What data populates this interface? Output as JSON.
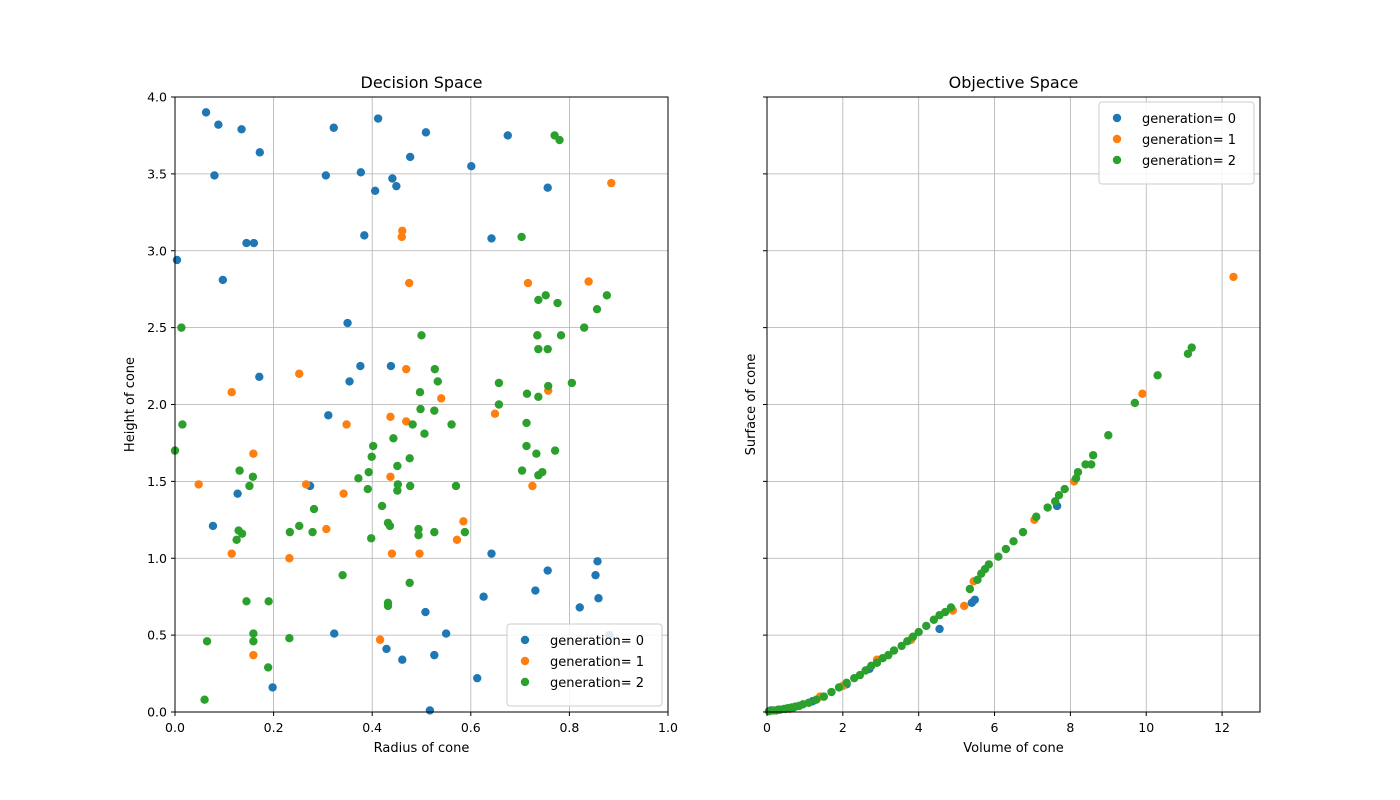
{
  "chart_data": [
    {
      "type": "scatter",
      "title": "Decision Space",
      "xlabel": "Radius of cone",
      "ylabel": "Height of cone",
      "xlim": [
        0,
        1
      ],
      "ylim": [
        0,
        4
      ],
      "xticks": [
        "0.0",
        "0.2",
        "0.4",
        "0.6",
        "0.8",
        "1.0"
      ],
      "xtick_values": [
        0,
        0.2,
        0.4,
        0.6,
        0.8,
        1.0
      ],
      "yticks": [
        "0.0",
        "0.5",
        "1.0",
        "1.5",
        "2.0",
        "2.5",
        "3.0",
        "3.5",
        "4.0"
      ],
      "ytick_values": [
        0,
        0.5,
        1.0,
        1.5,
        2.0,
        2.5,
        3.0,
        3.5,
        4.0
      ],
      "grid": true,
      "legend_position": "lower-right",
      "series": [
        {
          "name": "generation= 0",
          "color": "#1f77b4",
          "points": [
            [
              0.063,
              3.9
            ],
            [
              0.088,
              3.82
            ],
            [
              0.135,
              3.79
            ],
            [
              0.172,
              3.64
            ],
            [
              0.08,
              3.49
            ],
            [
              0.322,
              3.8
            ],
            [
              0.412,
              3.86
            ],
            [
              0.509,
              3.77
            ],
            [
              0.675,
              3.75
            ],
            [
              0.377,
              3.51
            ],
            [
              0.306,
              3.49
            ],
            [
              0.406,
              3.39
            ],
            [
              0.441,
              3.47
            ],
            [
              0.449,
              3.42
            ],
            [
              0.477,
              3.61
            ],
            [
              0.601,
              3.55
            ],
            [
              0.756,
              3.41
            ],
            [
              0.145,
              3.05
            ],
            [
              0.16,
              3.05
            ],
            [
              0.004,
              2.94
            ],
            [
              0.097,
              2.81
            ],
            [
              0.384,
              3.1
            ],
            [
              0.642,
              3.08
            ],
            [
              0.35,
              2.53
            ],
            [
              0.376,
              2.25
            ],
            [
              0.354,
              2.15
            ],
            [
              0.438,
              2.25
            ],
            [
              0.171,
              2.18
            ],
            [
              0.311,
              1.93
            ],
            [
              0.127,
              1.42
            ],
            [
              0.274,
              1.47
            ],
            [
              0.077,
              1.21
            ],
            [
              0.642,
              1.03
            ],
            [
              0.857,
              0.98
            ],
            [
              0.756,
              0.92
            ],
            [
              0.853,
              0.89
            ],
            [
              0.323,
              0.51
            ],
            [
              0.508,
              0.65
            ],
            [
              0.55,
              0.51
            ],
            [
              0.626,
              0.75
            ],
            [
              0.731,
              0.79
            ],
            [
              0.821,
              0.68
            ],
            [
              0.859,
              0.74
            ],
            [
              0.881,
              0.5
            ],
            [
              0.429,
              0.41
            ],
            [
              0.461,
              0.34
            ],
            [
              0.526,
              0.37
            ],
            [
              0.613,
              0.22
            ],
            [
              0.198,
              0.16
            ],
            [
              0.517,
              0.01
            ]
          ]
        },
        {
          "name": "generation= 1",
          "color": "#ff7f0e",
          "points": [
            [
              0.885,
              3.44
            ],
            [
              0.461,
              3.13
            ],
            [
              0.46,
              3.09
            ],
            [
              0.475,
              2.79
            ],
            [
              0.716,
              2.79
            ],
            [
              0.839,
              2.8
            ],
            [
              0.735,
              2.45
            ],
            [
              0.115,
              2.08
            ],
            [
              0.252,
              2.2
            ],
            [
              0.469,
              2.23
            ],
            [
              0.348,
              1.87
            ],
            [
              0.437,
              1.92
            ],
            [
              0.469,
              1.89
            ],
            [
              0.54,
              2.04
            ],
            [
              0.649,
              1.94
            ],
            [
              0.757,
              2.09
            ],
            [
              0.159,
              1.68
            ],
            [
              0.048,
              1.48
            ],
            [
              0.266,
              1.48
            ],
            [
              0.342,
              1.42
            ],
            [
              0.437,
              1.53
            ],
            [
              0.725,
              1.47
            ],
            [
              0.115,
              1.03
            ],
            [
              0.232,
              1.0
            ],
            [
              0.307,
              1.19
            ],
            [
              0.44,
              1.03
            ],
            [
              0.496,
              1.03
            ],
            [
              0.572,
              1.12
            ],
            [
              0.585,
              1.24
            ],
            [
              0.159,
              0.37
            ],
            [
              0.416,
              0.47
            ]
          ]
        },
        {
          "name": "generation= 2",
          "color": "#2ca02c",
          "points": [
            [
              0.77,
              3.75
            ],
            [
              0.78,
              3.72
            ],
            [
              0.703,
              3.09
            ],
            [
              0.737,
              2.68
            ],
            [
              0.752,
              2.71
            ],
            [
              0.776,
              2.66
            ],
            [
              0.876,
              2.71
            ],
            [
              0.856,
              2.62
            ],
            [
              0.013,
              2.5
            ],
            [
              0.5,
              2.45
            ],
            [
              0.735,
              2.45
            ],
            [
              0.783,
              2.45
            ],
            [
              0.83,
              2.5
            ],
            [
              0.737,
              2.36
            ],
            [
              0.756,
              2.36
            ],
            [
              0.527,
              2.23
            ],
            [
              0.533,
              2.15
            ],
            [
              0.657,
              2.14
            ],
            [
              0.757,
              2.12
            ],
            [
              0.805,
              2.14
            ],
            [
              0.497,
              2.08
            ],
            [
              0.714,
              2.07
            ],
            [
              0.737,
              2.05
            ],
            [
              0.015,
              1.87
            ],
            [
              0.498,
              1.97
            ],
            [
              0.526,
              1.96
            ],
            [
              0.657,
              2.0
            ],
            [
              0.482,
              1.87
            ],
            [
              0.506,
              1.81
            ],
            [
              0.561,
              1.87
            ],
            [
              0.443,
              1.78
            ],
            [
              0.402,
              1.73
            ],
            [
              0.713,
              1.88
            ],
            [
              0.0,
              1.7
            ],
            [
              0.399,
              1.66
            ],
            [
              0.713,
              1.73
            ],
            [
              0.733,
              1.68
            ],
            [
              0.771,
              1.7
            ],
            [
              0.131,
              1.57
            ],
            [
              0.158,
              1.53
            ],
            [
              0.372,
              1.52
            ],
            [
              0.393,
              1.56
            ],
            [
              0.451,
              1.6
            ],
            [
              0.476,
              1.65
            ],
            [
              0.704,
              1.57
            ],
            [
              0.737,
              1.54
            ],
            [
              0.745,
              1.56
            ],
            [
              0.151,
              1.47
            ],
            [
              0.391,
              1.45
            ],
            [
              0.452,
              1.48
            ],
            [
              0.451,
              1.44
            ],
            [
              0.477,
              1.47
            ],
            [
              0.57,
              1.47
            ],
            [
              0.282,
              1.32
            ],
            [
              0.42,
              1.34
            ],
            [
              0.125,
              1.12
            ],
            [
              0.129,
              1.18
            ],
            [
              0.136,
              1.16
            ],
            [
              0.233,
              1.17
            ],
            [
              0.252,
              1.21
            ],
            [
              0.279,
              1.17
            ],
            [
              0.432,
              1.23
            ],
            [
              0.436,
              1.21
            ],
            [
              0.398,
              1.13
            ],
            [
              0.494,
              1.19
            ],
            [
              0.494,
              1.15
            ],
            [
              0.526,
              1.17
            ],
            [
              0.588,
              1.17
            ],
            [
              0.34,
              0.89
            ],
            [
              0.476,
              0.84
            ],
            [
              0.145,
              0.72
            ],
            [
              0.19,
              0.72
            ],
            [
              0.432,
              0.71
            ],
            [
              0.432,
              0.69
            ],
            [
              0.065,
              0.46
            ],
            [
              0.159,
              0.51
            ],
            [
              0.159,
              0.46
            ],
            [
              0.232,
              0.48
            ],
            [
              0.189,
              0.29
            ],
            [
              0.06,
              0.08
            ]
          ]
        }
      ]
    },
    {
      "type": "scatter",
      "title": "Objective Space",
      "xlabel": "Volume of cone",
      "ylabel": "Surface of cone",
      "xlim": [
        0,
        13
      ],
      "ylim": [
        0,
        4
      ],
      "xticks": [
        "0",
        "2",
        "4",
        "6",
        "8",
        "10",
        "12"
      ],
      "xtick_values": [
        0,
        2,
        4,
        6,
        8,
        10,
        12
      ],
      "ytick_values": [
        0,
        0.5,
        1.0,
        1.5,
        2.0,
        2.5,
        3.0,
        3.5,
        4.0
      ],
      "grid": true,
      "legend_position": "upper-right",
      "series": [
        {
          "name": "generation= 0",
          "color": "#1f77b4",
          "points": [
            [
              0.1,
              0.01
            ],
            [
              0.3,
              0.015
            ],
            [
              0.5,
              0.02
            ],
            [
              0.7,
              0.03
            ],
            [
              1.2,
              0.07
            ],
            [
              2.1,
              0.18
            ],
            [
              2.7,
              0.28
            ],
            [
              4.55,
              0.54
            ],
            [
              5.4,
              0.71
            ],
            [
              5.48,
              0.73
            ],
            [
              7.65,
              1.34
            ]
          ]
        },
        {
          "name": "generation= 1",
          "color": "#ff7f0e",
          "points": [
            [
              0.2,
              0.01
            ],
            [
              0.6,
              0.02
            ],
            [
              1.4,
              0.1
            ],
            [
              2.0,
              0.17
            ],
            [
              2.9,
              0.34
            ],
            [
              3.8,
              0.47
            ],
            [
              4.9,
              0.66
            ],
            [
              5.2,
              0.69
            ],
            [
              5.45,
              0.85
            ],
            [
              7.05,
              1.25
            ],
            [
              8.1,
              1.5
            ],
            [
              9.9,
              2.07
            ],
            [
              12.3,
              2.83
            ]
          ]
        },
        {
          "name": "generation= 2",
          "color": "#2ca02c",
          "points": [
            [
              0.05,
              0.005
            ],
            [
              0.15,
              0.01
            ],
            [
              0.25,
              0.01
            ],
            [
              0.35,
              0.015
            ],
            [
              0.45,
              0.02
            ],
            [
              0.55,
              0.025
            ],
            [
              0.65,
              0.03
            ],
            [
              0.75,
              0.035
            ],
            [
              0.85,
              0.04
            ],
            [
              0.95,
              0.05
            ],
            [
              1.1,
              0.06
            ],
            [
              1.3,
              0.08
            ],
            [
              1.5,
              0.1
            ],
            [
              1.7,
              0.13
            ],
            [
              1.9,
              0.16
            ],
            [
              2.1,
              0.19
            ],
            [
              2.3,
              0.22
            ],
            [
              2.45,
              0.24
            ],
            [
              2.6,
              0.27
            ],
            [
              2.75,
              0.3
            ],
            [
              2.9,
              0.32
            ],
            [
              3.05,
              0.35
            ],
            [
              3.2,
              0.37
            ],
            [
              3.35,
              0.4
            ],
            [
              3.55,
              0.43
            ],
            [
              3.7,
              0.46
            ],
            [
              3.85,
              0.49
            ],
            [
              4.0,
              0.52
            ],
            [
              4.2,
              0.56
            ],
            [
              4.4,
              0.6
            ],
            [
              4.55,
              0.63
            ],
            [
              4.7,
              0.65
            ],
            [
              4.85,
              0.68
            ],
            [
              5.35,
              0.8
            ],
            [
              5.55,
              0.86
            ],
            [
              5.65,
              0.9
            ],
            [
              5.75,
              0.93
            ],
            [
              5.85,
              0.96
            ],
            [
              6.1,
              1.01
            ],
            [
              6.3,
              1.06
            ],
            [
              6.5,
              1.11
            ],
            [
              6.75,
              1.17
            ],
            [
              7.1,
              1.27
            ],
            [
              7.4,
              1.33
            ],
            [
              7.6,
              1.37
            ],
            [
              7.7,
              1.41
            ],
            [
              7.85,
              1.45
            ],
            [
              8.15,
              1.52
            ],
            [
              8.2,
              1.56
            ],
            [
              8.4,
              1.61
            ],
            [
              8.55,
              1.61
            ],
            [
              8.6,
              1.67
            ],
            [
              9.0,
              1.8
            ],
            [
              9.7,
              2.01
            ],
            [
              10.3,
              2.19
            ],
            [
              11.1,
              2.33
            ],
            [
              11.2,
              2.37
            ]
          ]
        }
      ]
    }
  ]
}
